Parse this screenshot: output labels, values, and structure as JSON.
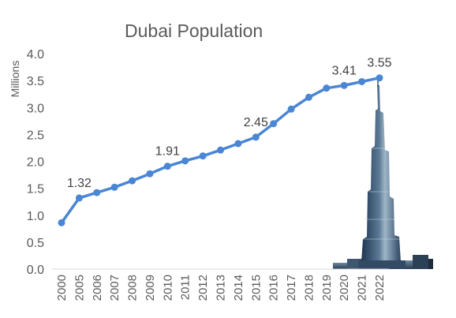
{
  "chart_data": {
    "type": "line",
    "title": "Dubai Population",
    "ylabel": "Millions",
    "xlabel": "",
    "ylim": [
      0,
      4.0
    ],
    "yticks": [
      "0.0",
      "0.5",
      "1.0",
      "1.5",
      "2.0",
      "2.5",
      "3.0",
      "3.5",
      "4.0"
    ],
    "categories": [
      "2000",
      "2005",
      "2006",
      "2007",
      "2008",
      "2009",
      "2010",
      "2011",
      "2012",
      "2013",
      "2014",
      "2015",
      "2016",
      "2017",
      "2018",
      "2019",
      "2020",
      "2021",
      "2022"
    ],
    "series": [
      {
        "values": [
          0.86,
          1.32,
          1.42,
          1.52,
          1.64,
          1.77,
          1.91,
          2.01,
          2.1,
          2.21,
          2.33,
          2.45,
          2.7,
          2.97,
          3.19,
          3.36,
          3.41,
          3.48,
          3.55
        ],
        "color": "#4a86d4"
      }
    ],
    "data_labels": [
      {
        "category": "2005",
        "text": "1.32"
      },
      {
        "category": "2010",
        "text": "1.91"
      },
      {
        "category": "2015",
        "text": "2.45"
      },
      {
        "category": "2020",
        "text": "3.41"
      },
      {
        "category": "2022",
        "text": "3.55"
      }
    ],
    "grid": false,
    "legend": "none",
    "decoration": "burj-khalifa-skyline"
  }
}
